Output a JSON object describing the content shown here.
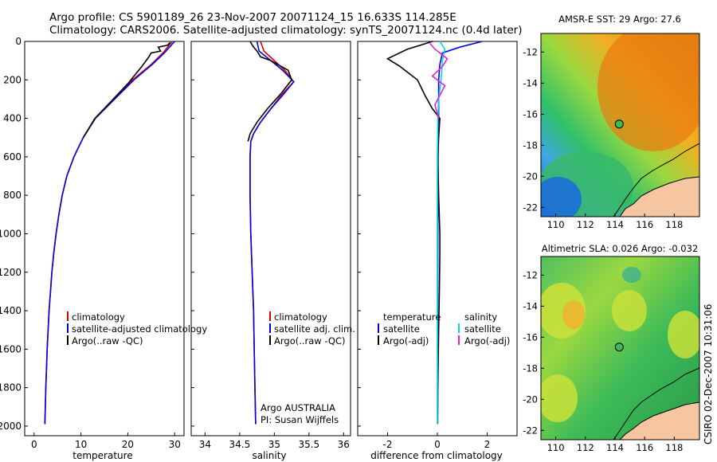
{
  "title_line1": "Argo profile: CS 5901189_26 23-Nov-2007 20071124_15 16.633S 114.285E",
  "title_line2": "Climatology: CARS2006. Satellite-adjusted climatology: synTS_20071124.nc (0.4d later)",
  "side_label": "CSIRO 02-Dec-2007 10:31:06",
  "colors": {
    "climatology": "#e00000",
    "satellite": "#0000e6",
    "argo": "#000000",
    "sal_satellite": "#00d8e8",
    "sal_argo": "#e020e0",
    "land": "#f5c6a0"
  },
  "chart_data": [
    {
      "type": "line",
      "name": "temperature-profile",
      "xlabel": "temperature",
      "xlim": [
        -2,
        32
      ],
      "ylim": [
        2050,
        0
      ],
      "xticks": [
        0,
        10,
        20,
        30
      ],
      "yticks": [
        0,
        200,
        400,
        600,
        800,
        1000,
        1200,
        1400,
        1600,
        1800,
        2000
      ],
      "legend": [
        "climatology",
        "satellite-adjusted climatology",
        "Argo(..raw -QC)"
      ],
      "series": [
        {
          "name": "climatology",
          "color_key": "climatology",
          "points": [
            [
              29.5,
              0
            ],
            [
              27.5,
              60
            ],
            [
              25,
              120
            ],
            [
              21,
              200
            ],
            [
              17,
              300
            ],
            [
              13,
              400
            ],
            [
              10.5,
              500
            ],
            [
              8.5,
              600
            ],
            [
              7,
              700
            ],
            [
              6,
              800
            ],
            [
              5.3,
              900
            ],
            [
              4.7,
              1000
            ],
            [
              4.2,
              1100
            ],
            [
              3.8,
              1200
            ],
            [
              3.5,
              1300
            ],
            [
              3.2,
              1400
            ],
            [
              3,
              1500
            ],
            [
              2.8,
              1600
            ],
            [
              2.65,
              1700
            ],
            [
              2.5,
              1800
            ],
            [
              2.4,
              1900
            ],
            [
              2.3,
              1990
            ]
          ]
        },
        {
          "name": "satellite-adjusted climatology",
          "color_key": "satellite",
          "points": [
            [
              30,
              0
            ],
            [
              27.8,
              60
            ],
            [
              25.2,
              120
            ],
            [
              21.3,
              200
            ],
            [
              17.2,
              300
            ],
            [
              13.1,
              400
            ],
            [
              10.5,
              500
            ],
            [
              8.5,
              600
            ],
            [
              7,
              700
            ],
            [
              6,
              800
            ],
            [
              5.3,
              900
            ],
            [
              4.7,
              1000
            ],
            [
              4.2,
              1100
            ],
            [
              3.8,
              1200
            ],
            [
              3.5,
              1300
            ],
            [
              3.2,
              1400
            ],
            [
              3,
              1500
            ],
            [
              2.8,
              1600
            ],
            [
              2.65,
              1700
            ],
            [
              2.5,
              1800
            ],
            [
              2.4,
              1900
            ],
            [
              2.3,
              1990
            ]
          ]
        },
        {
          "name": "Argo(..raw -QC)",
          "color_key": "argo",
          "points": [
            [
              29,
              5
            ],
            [
              28.5,
              20
            ],
            [
              26.5,
              30
            ],
            [
              27,
              50
            ],
            [
              25,
              60
            ],
            [
              24.5,
              80
            ],
            [
              23,
              130
            ],
            [
              20,
              220
            ],
            [
              16.5,
              310
            ],
            [
              13,
              400
            ],
            [
              10.5,
              500
            ]
          ]
        }
      ]
    },
    {
      "type": "line",
      "name": "salinity-profile",
      "xlabel": "salinity",
      "xlim": [
        33.8,
        36.1
      ],
      "ylim": [
        2050,
        0
      ],
      "xticks": [
        34,
        34.5,
        35,
        35.5,
        36
      ],
      "legend": [
        "climatology",
        "satellite adj. clim.",
        "Argo(..raw -QC)"
      ],
      "annotation": [
        "Argo AUSTRALIA",
        "PI: Susan Wijffels"
      ],
      "series": [
        {
          "name": "climatology",
          "color_key": "climatology",
          "points": [
            [
              34.8,
              0
            ],
            [
              34.85,
              50
            ],
            [
              35.0,
              100
            ],
            [
              35.15,
              150
            ],
            [
              35.28,
              210
            ],
            [
              35.1,
              280
            ],
            [
              34.95,
              350
            ],
            [
              34.8,
              420
            ],
            [
              34.7,
              480
            ],
            [
              34.66,
              520
            ],
            [
              34.65,
              600
            ],
            [
              34.65,
              800
            ],
            [
              34.66,
              1000
            ],
            [
              34.68,
              1200
            ],
            [
              34.7,
              1400
            ],
            [
              34.71,
              1600
            ],
            [
              34.72,
              1800
            ],
            [
              34.73,
              1990
            ]
          ]
        },
        {
          "name": "satellite adj. clim.",
          "color_key": "satellite",
          "points": [
            [
              34.75,
              0
            ],
            [
              34.78,
              50
            ],
            [
              34.95,
              100
            ],
            [
              35.12,
              150
            ],
            [
              35.28,
              210
            ],
            [
              35.12,
              280
            ],
            [
              34.95,
              350
            ],
            [
              34.8,
              420
            ],
            [
              34.7,
              480
            ],
            [
              34.66,
              520
            ],
            [
              34.65,
              600
            ],
            [
              34.65,
              800
            ],
            [
              34.66,
              1000
            ],
            [
              34.68,
              1200
            ],
            [
              34.7,
              1400
            ],
            [
              34.71,
              1600
            ],
            [
              34.72,
              1800
            ],
            [
              34.73,
              1990
            ]
          ]
        },
        {
          "name": "Argo(..raw -QC)",
          "color_key": "argo",
          "points": [
            [
              34.65,
              0
            ],
            [
              34.7,
              30
            ],
            [
              34.75,
              50
            ],
            [
              34.8,
              80
            ],
            [
              34.95,
              100
            ],
            [
              35.2,
              150
            ],
            [
              35.25,
              200
            ],
            [
              35.1,
              270
            ],
            [
              34.9,
              350
            ],
            [
              34.75,
              420
            ],
            [
              34.65,
              480
            ],
            [
              34.62,
              520
            ]
          ]
        }
      ]
    },
    {
      "type": "line",
      "name": "difference-profile",
      "xlabel": "difference from climatology",
      "xlim": [
        -3.2,
        3.2
      ],
      "ylim": [
        2050,
        0
      ],
      "xticks": [
        -2,
        0,
        2
      ],
      "legend_temperature": [
        "temperature",
        "satellite",
        "Argo(-adj)"
      ],
      "legend_salinity": [
        "salinity",
        "satellite",
        "Argo(-adj)"
      ],
      "series": [
        {
          "name": "temperature satellite",
          "color_key": "satellite",
          "points": [
            [
              1.8,
              0
            ],
            [
              0.9,
              30
            ],
            [
              0.2,
              60
            ],
            [
              0.1,
              120
            ],
            [
              0.05,
              200
            ],
            [
              0.05,
              400
            ],
            [
              0.03,
              600
            ],
            [
              0.02,
              1000
            ],
            [
              0.01,
              1500
            ],
            [
              0.01,
              1990
            ]
          ]
        },
        {
          "name": "temperature Argo(-adj)",
          "color_key": "argo",
          "points": [
            [
              -0.2,
              0
            ],
            [
              -1.2,
              40
            ],
            [
              -2.0,
              90
            ],
            [
              -1.5,
              130
            ],
            [
              -0.8,
              200
            ],
            [
              -0.5,
              280
            ],
            [
              -0.2,
              350
            ],
            [
              0.1,
              400
            ],
            [
              0.05,
              500
            ],
            [
              0.02,
              600
            ],
            [
              0.05,
              800
            ],
            [
              0.1,
              1000
            ],
            [
              0.1,
              1100
            ],
            [
              0.08,
              1300
            ],
            [
              0.05,
              1500
            ],
            [
              0.02,
              1800
            ],
            [
              0.01,
              1990
            ]
          ]
        },
        {
          "name": "salinity satellite",
          "color_key": "sal_satellite",
          "points": [
            [
              0.1,
              0
            ],
            [
              0.3,
              40
            ],
            [
              0.2,
              100
            ],
            [
              0.15,
              200
            ],
            [
              0.05,
              300
            ],
            [
              0.02,
              400
            ],
            [
              0.0,
              600
            ],
            [
              0.0,
              1000
            ],
            [
              0.0,
              1500
            ],
            [
              0.0,
              1990
            ]
          ]
        },
        {
          "name": "salinity Argo(-adj)",
          "color_key": "sal_argo",
          "points": [
            [
              -0.3,
              10
            ],
            [
              -0.1,
              40
            ],
            [
              0.4,
              90
            ],
            [
              0.2,
              130
            ],
            [
              -0.2,
              180
            ],
            [
              0.3,
              230
            ],
            [
              0.1,
              280
            ],
            [
              -0.1,
              330
            ],
            [
              0.05,
              400
            ]
          ]
        }
      ]
    },
    {
      "type": "heatmap",
      "name": "amsre-sst-map",
      "title": "AMSR-E SST: 29 Argo: 27.6",
      "xticks": [
        110,
        112,
        114,
        116,
        118
      ],
      "yticks": [
        -12,
        -14,
        -16,
        -18,
        -20,
        -22
      ],
      "xlim": [
        109,
        119.7
      ],
      "ylim": [
        -22.6,
        -10.8
      ],
      "argo_position": [
        114.285,
        -16.633
      ]
    },
    {
      "type": "heatmap",
      "name": "altimetric-sla-map",
      "title": "Altimetric SLA: 0.026 Argo: -0.032",
      "xticks": [
        110,
        112,
        114,
        116,
        118
      ],
      "yticks": [
        -12,
        -14,
        -16,
        -18,
        -20,
        -22
      ],
      "xlim": [
        109,
        119.7
      ],
      "ylim": [
        -22.6,
        -10.8
      ],
      "argo_position": [
        114.285,
        -16.633
      ]
    }
  ]
}
